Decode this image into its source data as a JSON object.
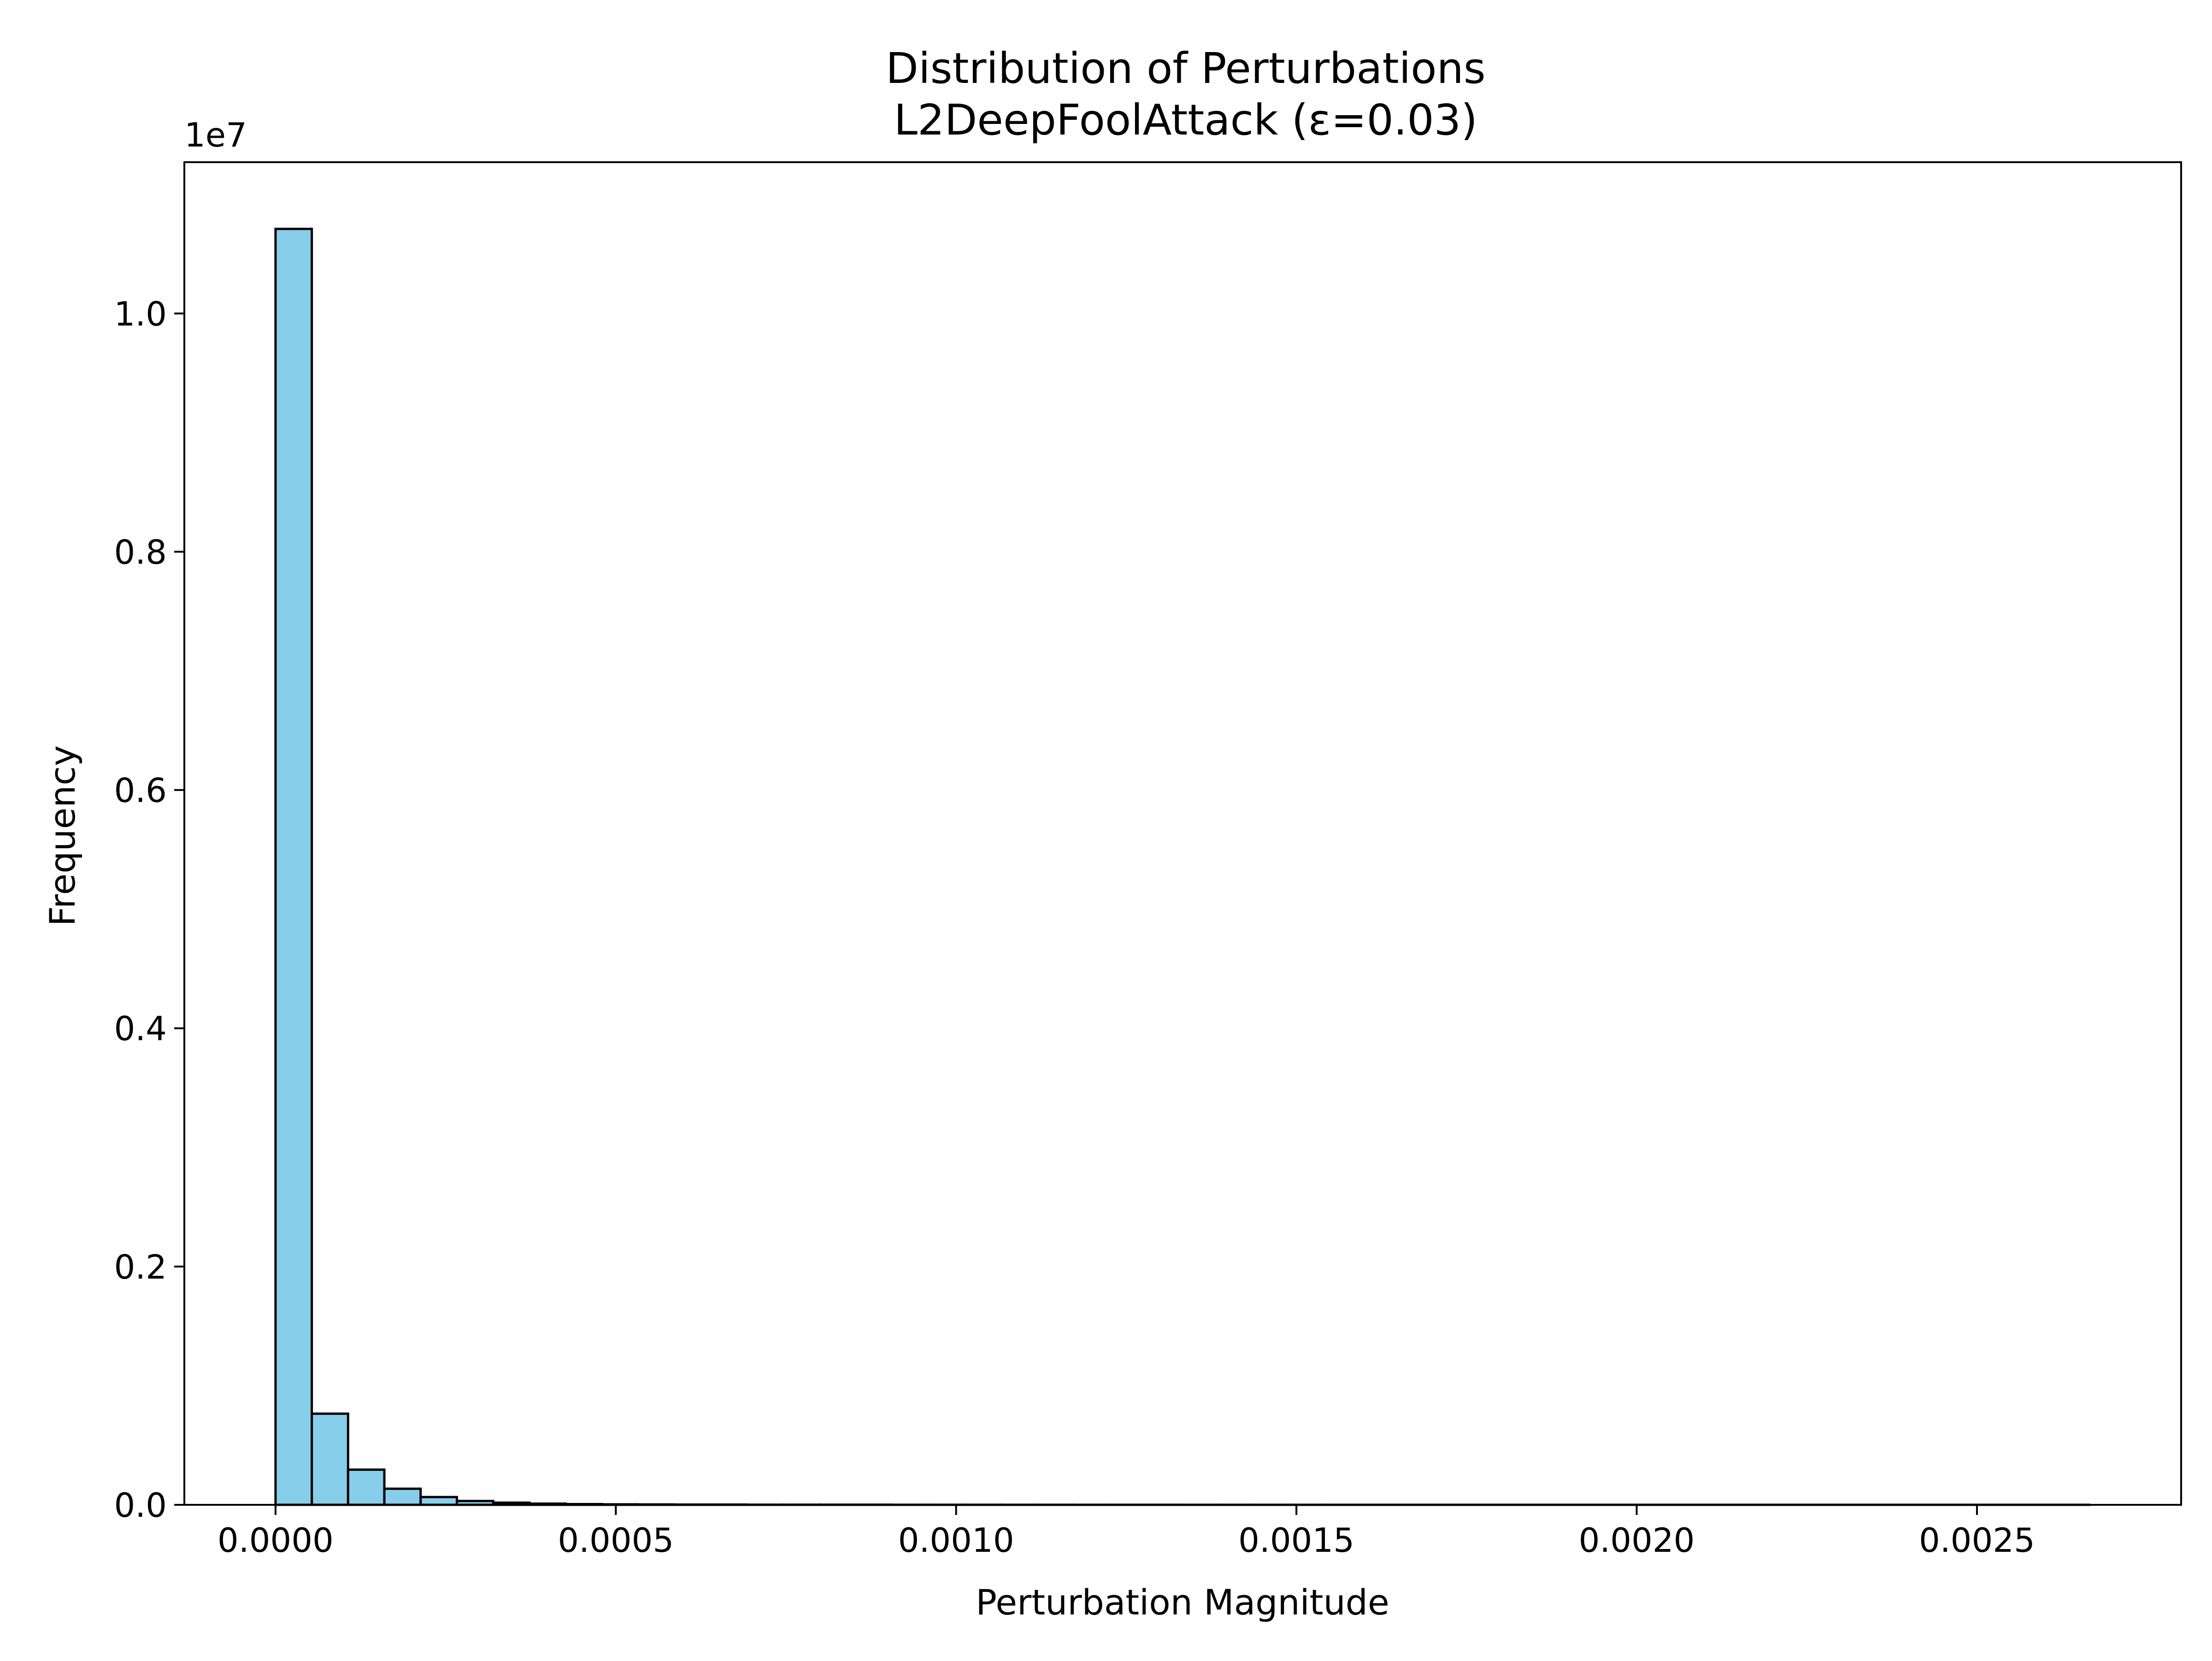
{
  "chart_data": {
    "type": "bar",
    "title": "Distribution of Perturbations",
    "subtitle": "L2DeepFoolAttack (ε=0.03)",
    "xlabel": "Perturbation Magnitude",
    "ylabel": "Frequency",
    "y_offset_label": "1e7",
    "y_scale": 10000000,
    "xlim": [
      -0.000134,
      0.0028
    ],
    "ylim": [
      0,
      1.127
    ],
    "x_ticks": [
      0.0,
      0.0005,
      0.001,
      0.0015,
      0.002,
      0.0025
    ],
    "x_tick_labels": [
      "0.0000",
      "0.0005",
      "0.0010",
      "0.0015",
      "0.0020",
      "0.0025"
    ],
    "y_ticks": [
      0.0,
      0.2,
      0.4,
      0.6,
      0.8,
      1.0
    ],
    "y_tick_labels": [
      "0.0",
      "0.2",
      "0.4",
      "0.6",
      "0.8",
      "1.0"
    ],
    "grid": false,
    "legend": "none",
    "colors": {
      "bar_fill": "#87ceeb",
      "bar_edge": "#000000"
    },
    "bin_start": 0.0,
    "bin_width": 5.33e-05,
    "bins": 50,
    "values": [
      1.071,
      0.0765,
      0.0295,
      0.0135,
      0.0065,
      0.0032,
      0.0018,
      0.001,
      0.0006,
      0.0004,
      0.0003,
      0.0002,
      0.0002,
      0.0001,
      0.0001,
      0.0001,
      0.0001,
      5e-05,
      5e-05,
      5e-05,
      4e-05,
      4e-05,
      3e-05,
      3e-05,
      3e-05,
      2e-05,
      2e-05,
      2e-05,
      2e-05,
      2e-05,
      1e-05,
      1e-05,
      1e-05,
      1e-05,
      1e-05,
      1e-05,
      1e-05,
      1e-05,
      1e-05,
      1e-05,
      1e-05,
      1e-05,
      1e-05,
      1e-05,
      1e-05,
      1e-05,
      1e-05,
      1e-05,
      1e-05,
      1e-05
    ]
  }
}
